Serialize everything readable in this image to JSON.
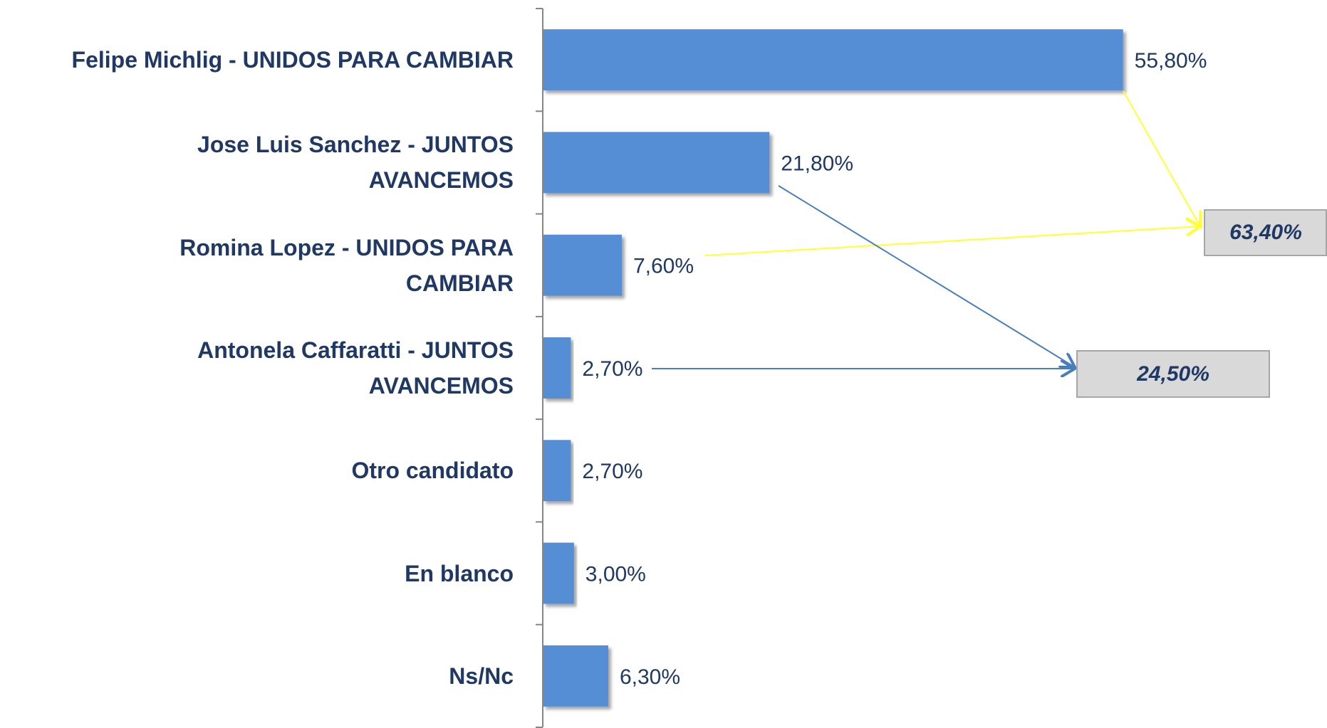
{
  "chart_data": {
    "type": "hbar",
    "categories": [
      "Felipe Michlig - UNIDOS PARA CAMBIAR",
      "Jose Luis Sanchez - JUNTOS\nAVANCEMOS",
      "Romina Lopez - UNIDOS PARA\nCAMBIAR",
      "Antonela Caffaratti - JUNTOS\nAVANCEMOS",
      "Otro candidato",
      "En blanco",
      "Ns/Nc"
    ],
    "values": [
      55.8,
      21.8,
      7.6,
      2.7,
      2.7,
      3.0,
      6.3
    ],
    "value_labels": [
      "55,80%",
      "21,80%",
      "7,60%",
      "2,70%",
      "2,70%",
      "3,00%",
      "6,30%"
    ],
    "color": "#558ed5",
    "xlim": [
      0,
      75
    ],
    "annotations": [
      "63,40%",
      "24,50%"
    ]
  }
}
